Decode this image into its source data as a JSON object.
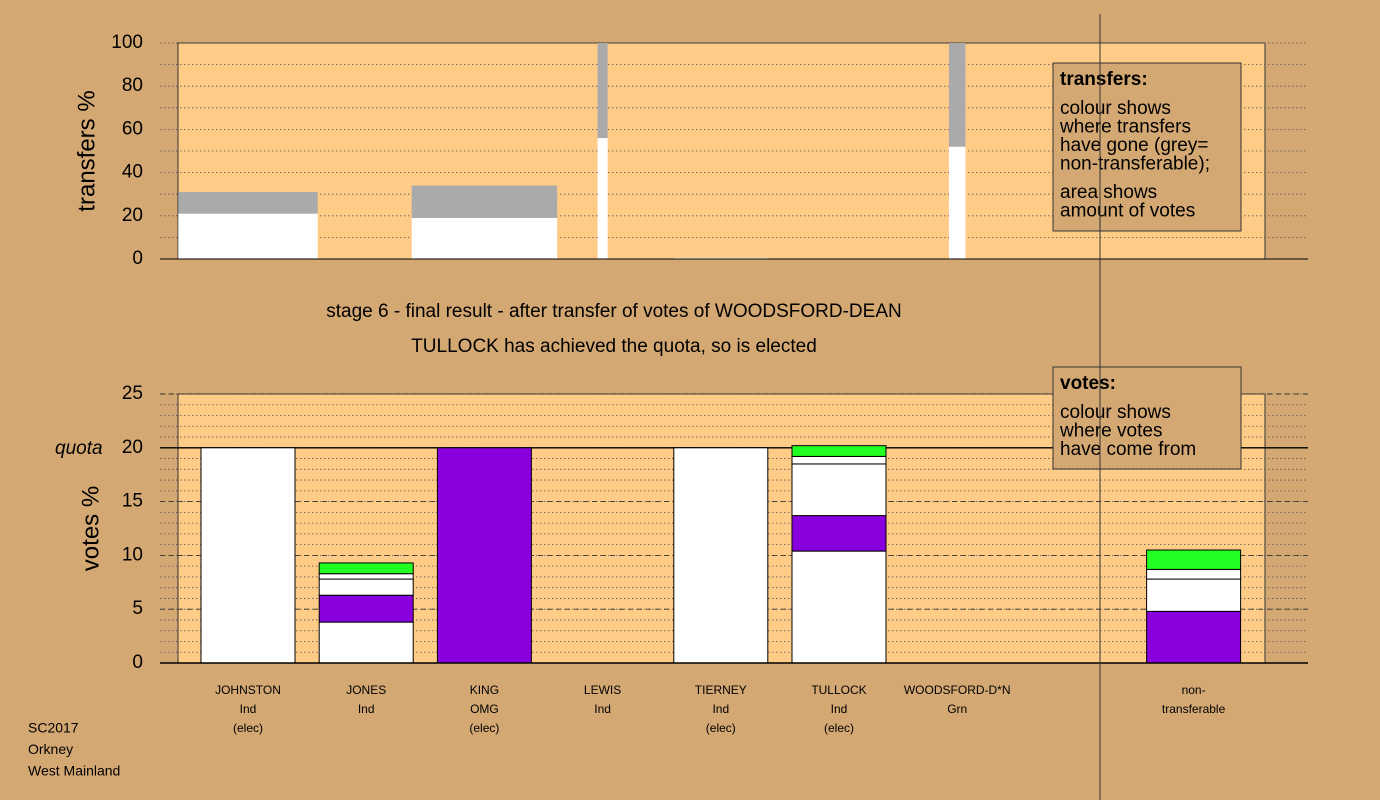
{
  "chart_data": [
    {
      "type": "bar",
      "stacked": true,
      "ylabel": "transfers %",
      "ylim": [
        0,
        100
      ],
      "yticks": [
        0,
        20,
        40,
        60,
        80,
        100
      ],
      "minor_step": 10,
      "widths": [
        1.18,
        null,
        1.23,
        0.085,
        0.79,
        null,
        0.14,
        null,
        null
      ],
      "series": [
        {
          "color": "#ffffff",
          "values": [
            21,
            null,
            19,
            56,
            0.5,
            null,
            52,
            null,
            null
          ]
        },
        {
          "color": "#aaaaaa",
          "values": [
            10,
            null,
            15,
            44,
            0,
            null,
            48,
            null,
            null
          ]
        }
      ],
      "note": {
        "title": "transfers:",
        "lines": [
          [
            "colour shows",
            "where transfers",
            "have gone (grey=",
            "non-transferable);"
          ],
          [
            "area shows",
            "amount of votes"
          ]
        ]
      }
    },
    {
      "type": "bar",
      "stacked": true,
      "title": "stage 6 - final result - after transfer of votes of WOODSFORD-DEAN",
      "subtitle": "TULLOCK has achieved the quota, so is elected",
      "ylabel": "votes %",
      "ylim": [
        0,
        25
      ],
      "yticks": [
        0,
        5,
        10,
        15,
        20,
        25
      ],
      "minor_step": 1,
      "quota": 20,
      "quota_label": "quota",
      "categories": [
        [
          "JOHNSTON",
          "Ind",
          "(elec)"
        ],
        [
          "JONES",
          "Ind"
        ],
        [
          "KING",
          "OMG",
          "(elec)"
        ],
        [
          "LEWIS",
          "Ind"
        ],
        [
          "TIERNEY",
          "Ind",
          "(elec)"
        ],
        [
          "TULLOCK",
          "Ind",
          "(elec)"
        ],
        [
          "WOODSFORD-D*N",
          "Grn"
        ],
        null,
        [
          "non-",
          "transferable"
        ]
      ],
      "series": [
        {
          "color": "#ffffff",
          "values": [
            20,
            3.8,
            0,
            0,
            20,
            10.4,
            0,
            0,
            0
          ]
        },
        {
          "color": "#8800dd",
          "values": [
            0,
            2.5,
            20,
            0,
            0,
            3.3,
            0,
            0,
            4.8
          ]
        },
        {
          "color": "#ffffff",
          "values": [
            0,
            1.5,
            0,
            0,
            0,
            4.8,
            0,
            0,
            3.0
          ]
        },
        {
          "color": "#ffffff",
          "values": [
            0,
            0.5,
            0,
            0,
            0,
            0.7,
            0,
            0,
            0.9
          ]
        },
        {
          "color": "#22ff22",
          "values": [
            0,
            1.0,
            0,
            0,
            0,
            1.0,
            0,
            0,
            1.8
          ]
        }
      ],
      "note": {
        "title": "votes:",
        "lines": [
          [
            "colour shows",
            "where votes",
            "have come from"
          ]
        ]
      }
    }
  ],
  "footer": [
    "SC2017",
    "Orkney",
    "West Mainland"
  ]
}
